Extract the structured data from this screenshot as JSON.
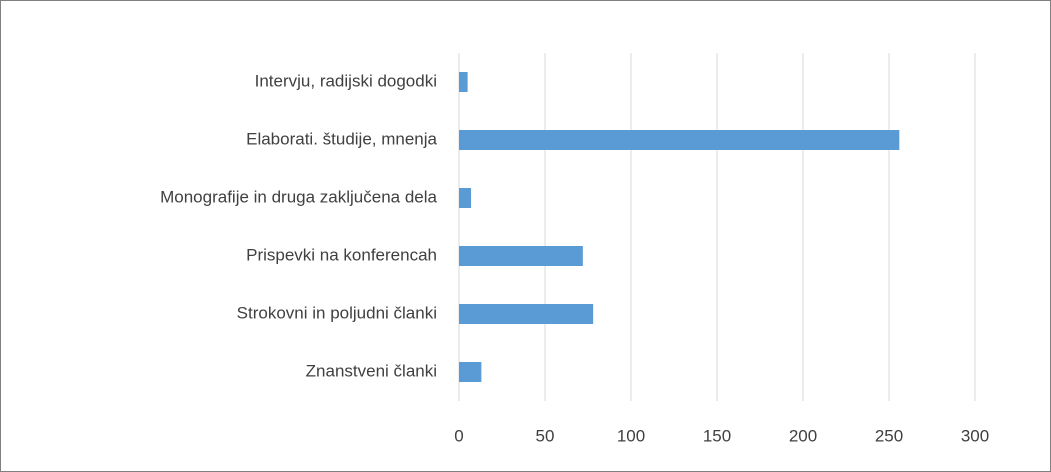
{
  "chart_data": {
    "type": "bar",
    "orientation": "horizontal",
    "categories": [
      "Intervju, radijski dogodki",
      "Elaborati. študije, mnenja",
      "Monografije in druga zaključena dela",
      "Prispevki na konferencah",
      "Strokovni in poljudni članki",
      "Znanstveni članki"
    ],
    "values": [
      5,
      256,
      7,
      72,
      78,
      13
    ],
    "color": "#5b9bd5",
    "xlim": [
      0,
      300
    ],
    "xticks": [
      0,
      50,
      100,
      150,
      200,
      250,
      300
    ],
    "grid": true
  }
}
